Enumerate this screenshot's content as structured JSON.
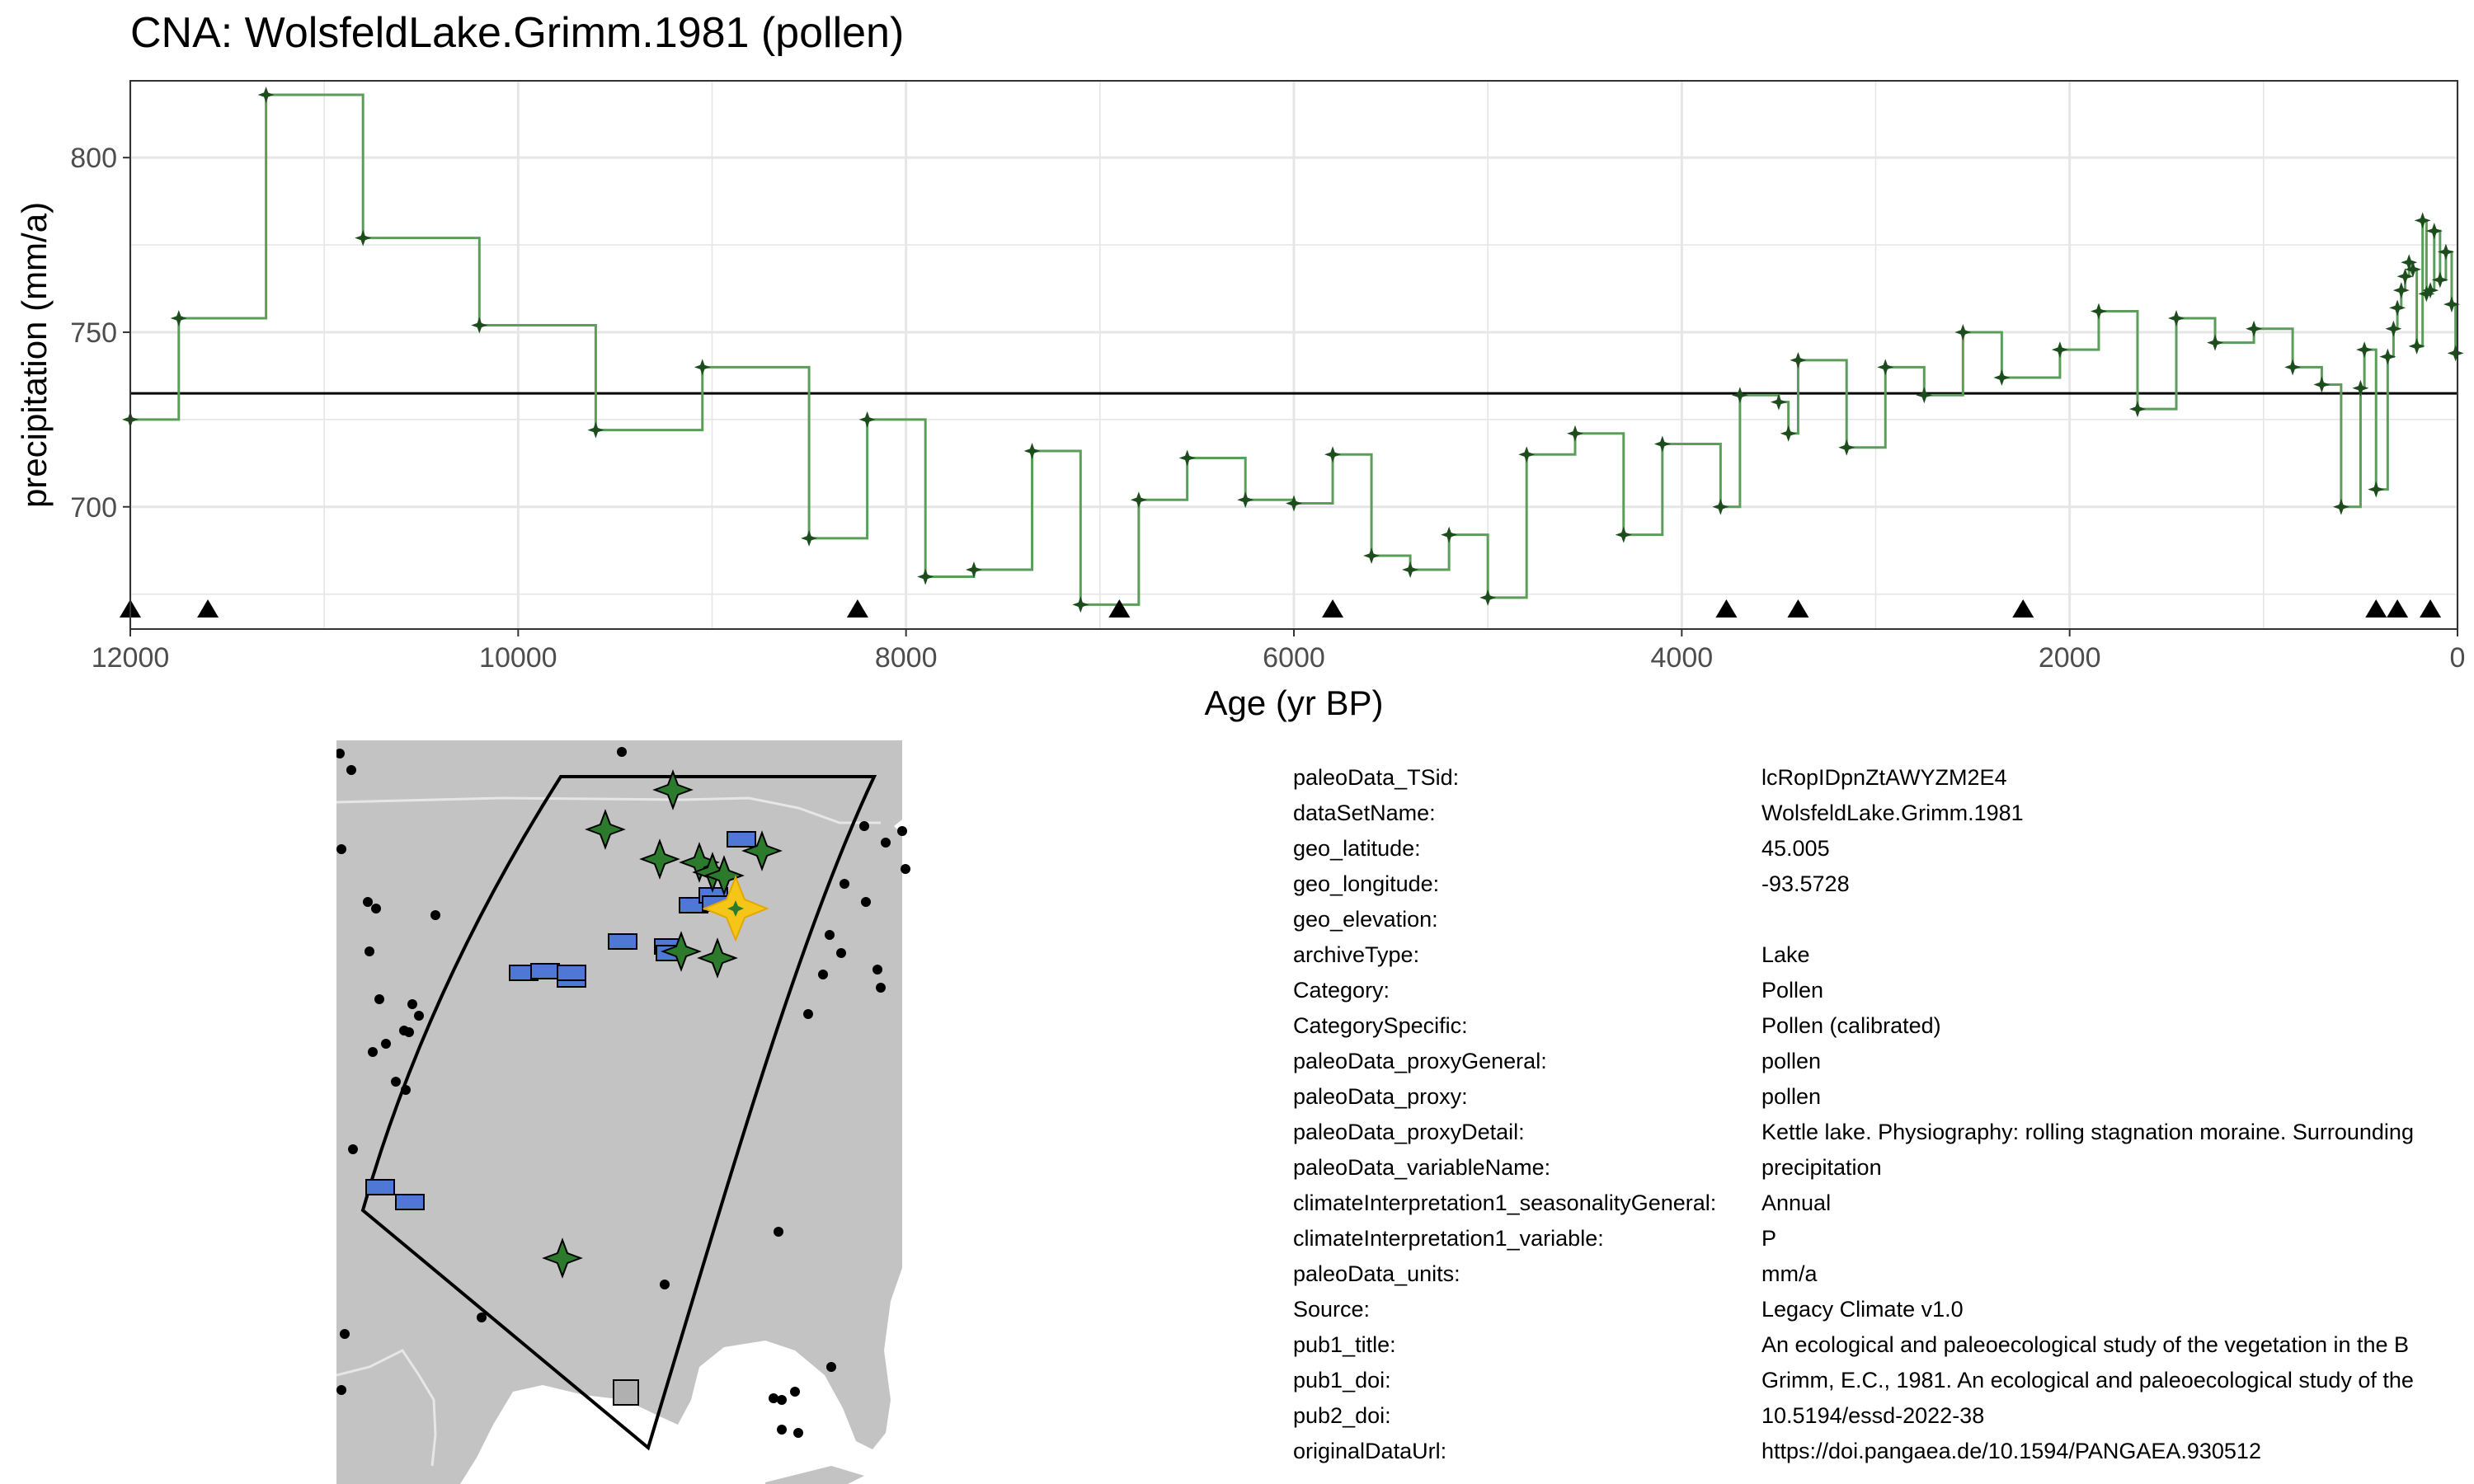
{
  "chart_data": [
    {
      "type": "line",
      "subtype": "step",
      "title": "CNA: WolsfeldLake.Grimm.1981 (pollen)",
      "xlabel": "Age (yr BP)",
      "ylabel": "precipitation (mm/a)",
      "xlim": [
        12000,
        0
      ],
      "ylim": [
        665,
        822
      ],
      "x_reversed": true,
      "x_ticks": [
        12000,
        10000,
        8000,
        6000,
        4000,
        2000,
        0
      ],
      "y_ticks": [
        700,
        750,
        800
      ],
      "grid": true,
      "line_color": "#5a9e5a",
      "point_color": "#1d4d1d",
      "mean_line": 732.5,
      "series": [
        {
          "x": [
            12000,
            11750,
            11300,
            10800,
            10200,
            9600,
            9050,
            8500,
            8200,
            7900,
            7650,
            7350,
            7100,
            6800,
            6550,
            6250,
            6000,
            5800,
            5600,
            5400,
            5200,
            5000,
            4800,
            4550,
            4300,
            4100,
            3800,
            3700,
            3500,
            3450,
            3400,
            3150,
            2950,
            2750,
            2550,
            2350,
            2050,
            1850,
            1650,
            1450,
            1250,
            1050,
            850,
            700,
            600,
            500,
            480,
            420,
            360,
            330,
            310,
            290,
            270,
            250,
            230,
            210,
            180,
            160,
            140,
            120,
            90,
            60,
            30,
            10
          ],
          "values": [
            725,
            754,
            818,
            777,
            752,
            722,
            740,
            691,
            725,
            680,
            682,
            716,
            672,
            702,
            714,
            702,
            701,
            715,
            686,
            682,
            692,
            674,
            715,
            721,
            692,
            718,
            700,
            732,
            730,
            721,
            742,
            717,
            740,
            732,
            750,
            737,
            745,
            756,
            728,
            754,
            747,
            751,
            740,
            735,
            700,
            734,
            745,
            705,
            743,
            751,
            757,
            762,
            766,
            770,
            768,
            746,
            782,
            761,
            762,
            779,
            765,
            773,
            758,
            744
          ]
        }
      ],
      "markers": {
        "symbol": "triangle",
        "x": [
          12000,
          11600,
          8250,
          6900,
          5800,
          3770,
          3400,
          2240,
          420,
          310,
          140
        ]
      }
    },
    {
      "type": "scatter",
      "subtype": "map",
      "land_color": "#c3c3c3",
      "sea_color": "#ffffff",
      "record_color_proxy": "#2c7a2c",
      "record_color_other": "#4f78d6",
      "target_color": "#f5c518",
      "region_outline_color": "#000000"
    }
  ],
  "title": "CNA: WolsfeldLake.Grimm.1981 (pollen)",
  "metadata": [
    {
      "key": "paleoData_TSid:",
      "value": "lcRopIDpnZtAWYZM2E4"
    },
    {
      "key": "dataSetName:",
      "value": "WolsfeldLake.Grimm.1981"
    },
    {
      "key": "geo_latitude:",
      "value": "45.005"
    },
    {
      "key": "geo_longitude:",
      "value": "-93.5728"
    },
    {
      "key": "geo_elevation:",
      "value": ""
    },
    {
      "key": "archiveType:",
      "value": "Lake"
    },
    {
      "key": "Category:",
      "value": "Pollen"
    },
    {
      "key": "CategorySpecific:",
      "value": "Pollen (calibrated)"
    },
    {
      "key": "paleoData_proxyGeneral:",
      "value": "pollen"
    },
    {
      "key": "paleoData_proxy:",
      "value": "pollen"
    },
    {
      "key": "paleoData_proxyDetail:",
      "value": "Kettle lake. Physiography: rolling stagnation moraine. Surrounding"
    },
    {
      "key": "paleoData_variableName:",
      "value": "precipitation"
    },
    {
      "key": "climateInterpretation1_seasonalityGeneral:",
      "value": "Annual"
    },
    {
      "key": "climateInterpretation1_variable:",
      "value": "P"
    },
    {
      "key": "paleoData_units:",
      "value": "mm/a"
    },
    {
      "key": "Source:",
      "value": "Legacy Climate v1.0"
    },
    {
      "key": "pub1_title:",
      "value": "An ecological and paleoecological study of the vegetation in the B"
    },
    {
      "key": "pub1_doi:",
      "value": "Grimm, E.C., 1981. An ecological and paleoecological study of the"
    },
    {
      "key": "pub2_doi:",
      "value": "10.5194/essd-2022-38"
    },
    {
      "key": "originalDataUrl:",
      "value": "https://doi.pangaea.de/10.1594/PANGAEA.930512"
    }
  ]
}
